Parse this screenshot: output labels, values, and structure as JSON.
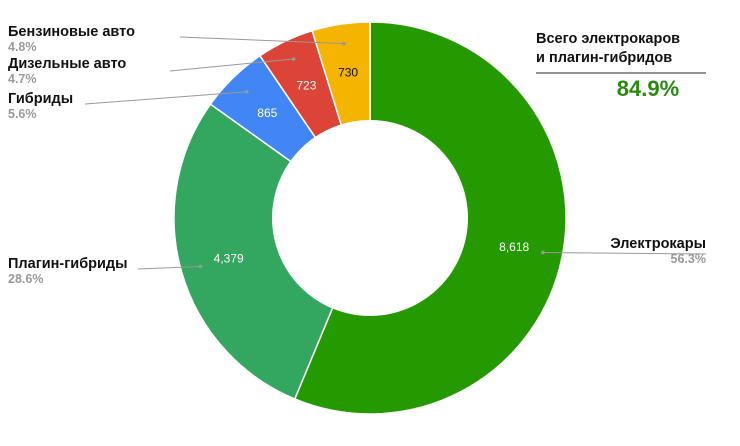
{
  "chart_data": {
    "type": "pie",
    "donut": true,
    "title": "",
    "categories": [
      "Электрокары",
      "Плагин-гибриды",
      "Гибриды",
      "Дизельные авто",
      "Бензиновые авто"
    ],
    "values": [
      8618,
      4379,
      865,
      723,
      730
    ],
    "value_labels": [
      "8,618",
      "4,379",
      "865",
      "723",
      "730"
    ],
    "percent_labels": [
      "56.3%",
      "28.6%",
      "5.6%",
      "4.7%",
      "4.8%"
    ],
    "colors": [
      "#259a00",
      "#33a660",
      "#4285f4",
      "#db4437",
      "#f4b400"
    ],
    "value_label_colors": [
      "#ffffff",
      "#ffffff",
      "#ffffff",
      "#ffffff",
      "#111111"
    ],
    "legend": "none"
  },
  "summary": {
    "line1": "Всего электрокаров",
    "line2": "и плагин-гибридов",
    "value": "84.9%",
    "value_color": "#2a8a10"
  }
}
